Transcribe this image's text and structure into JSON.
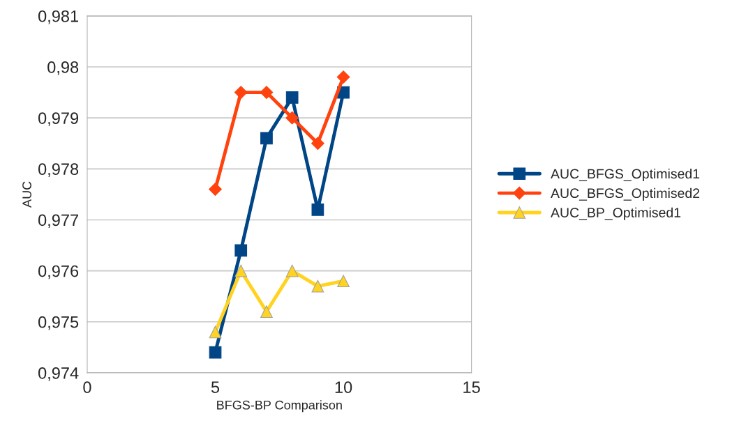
{
  "chart_data": {
    "type": "line",
    "xlabel": "BFGS-BP Comparison",
    "ylabel": "AUC",
    "x": [
      5,
      6,
      7,
      8,
      9,
      10
    ],
    "series": [
      {
        "name": "AUC_BFGS_Optimised1",
        "color": "#004586",
        "marker": "square",
        "values": [
          0.9744,
          0.9764,
          0.9786,
          0.9794,
          0.9772,
          0.9795
        ]
      },
      {
        "name": "AUC_BFGS_Optimised2",
        "color": "#ff420e",
        "marker": "diamond",
        "values": [
          0.9776,
          0.9795,
          0.9795,
          0.979,
          0.9785,
          0.9798
        ]
      },
      {
        "name": "AUC_BP_Optimised1",
        "color": "#ffd320",
        "marker": "triangle",
        "values": [
          0.9748,
          0.976,
          0.9752,
          0.976,
          0.9757,
          0.9758
        ]
      }
    ],
    "xlim": [
      0,
      15
    ],
    "xticks": [
      0,
      5,
      10,
      15
    ],
    "ylim": [
      0.974,
      0.981
    ],
    "yticks": [
      {
        "value": 0.974,
        "label": "0,974"
      },
      {
        "value": 0.975,
        "label": "0,975"
      },
      {
        "value": 0.976,
        "label": "0,976"
      },
      {
        "value": 0.977,
        "label": "0,977"
      },
      {
        "value": 0.978,
        "label": "0,978"
      },
      {
        "value": 0.979,
        "label": "0,979"
      },
      {
        "value": 0.98,
        "label": "0,98"
      },
      {
        "value": 0.981,
        "label": "0,981"
      }
    ],
    "grid": "y",
    "legend": "right",
    "line_style": "solid"
  }
}
